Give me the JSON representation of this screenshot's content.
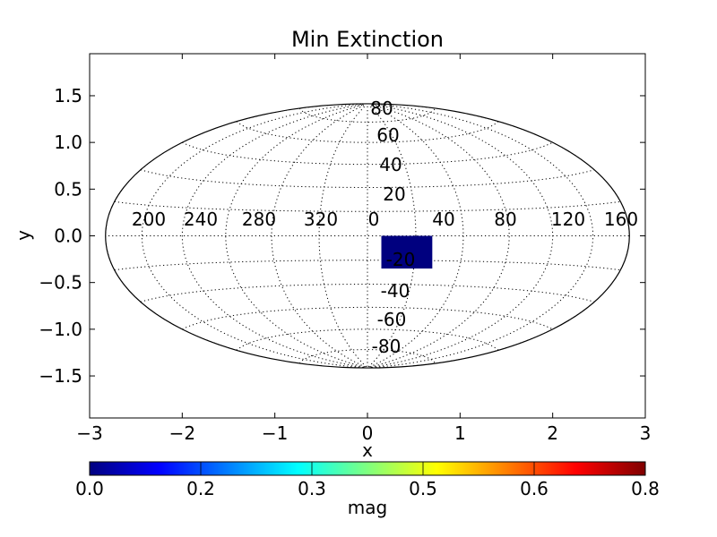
{
  "chart_data": {
    "type": "heatmap",
    "projection": "aitoff-hammer",
    "title": "Min Extinction",
    "xlabel": "x",
    "ylabel": "y",
    "xlim": [
      -3,
      3
    ],
    "ylim": [
      -1.95,
      1.95
    ],
    "xticks": [
      "−3",
      "−2",
      "−1",
      "0",
      "1",
      "2",
      "3"
    ],
    "xtick_values": [
      -3,
      -2,
      -1,
      0,
      1,
      2,
      3
    ],
    "yticks": [
      "1.5",
      "1.0",
      "0.5",
      "0.0",
      "−0.5",
      "−1.0",
      "−1.5"
    ],
    "ytick_values": [
      1.5,
      1.0,
      0.5,
      0.0,
      -0.5,
      -1.0,
      -1.5
    ],
    "longitude_labels": [
      "200",
      "240",
      "280",
      "320",
      "0",
      "40",
      "80",
      "120",
      "160"
    ],
    "latitude_labels": [
      "80",
      "60",
      "40",
      "20",
      "-20",
      "-40",
      "-60",
      "-80"
    ],
    "grid": true,
    "region": {
      "x_range": [
        0.15,
        0.7
      ],
      "y_range": [
        -0.35,
        0.0
      ],
      "value": 0.0,
      "color": "#00007f"
    },
    "colorbar": {
      "label": "mag",
      "ticks": [
        "0.0",
        "0.2",
        "0.3",
        "0.5",
        "0.6",
        "0.8"
      ],
      "colormap": "jet",
      "colors": [
        "#00007f",
        "#0000ff",
        "#007fff",
        "#00ffff",
        "#7fff7f",
        "#ffff00",
        "#ff7f00",
        "#ff0000",
        "#7f0000"
      ]
    }
  }
}
